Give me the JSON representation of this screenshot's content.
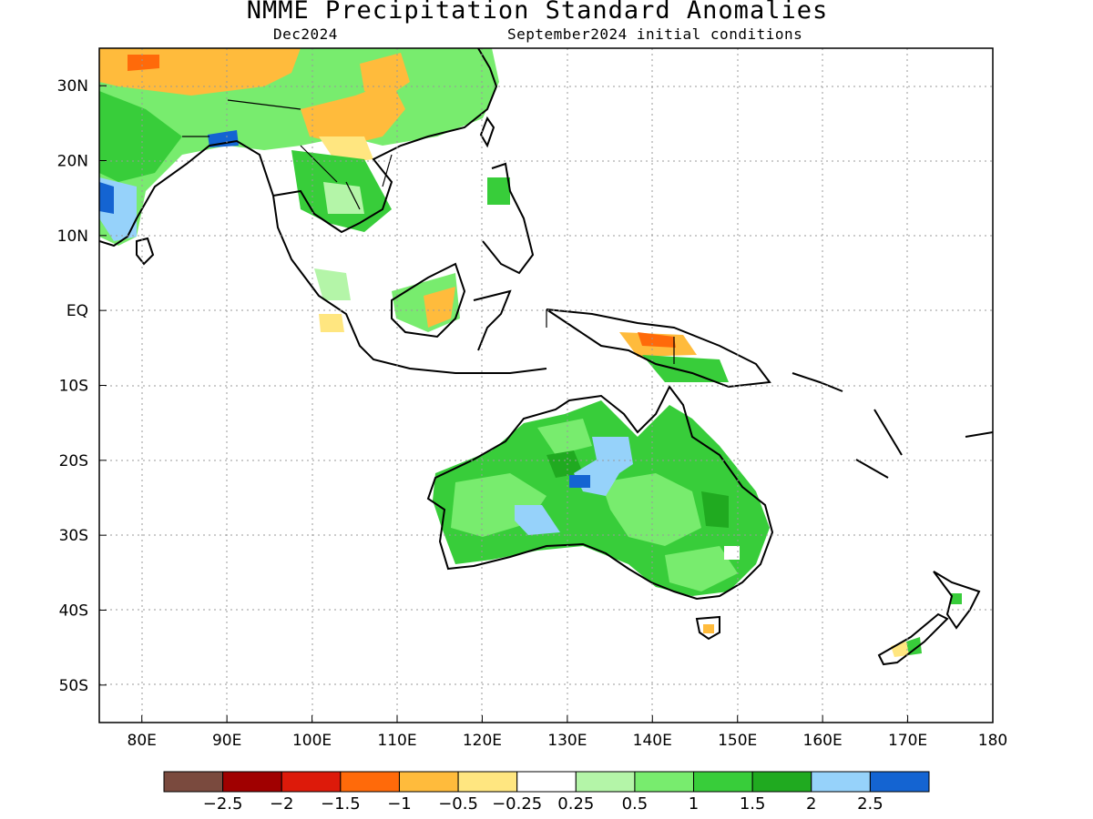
{
  "title": "NMME Precipitation Standard Anomalies",
  "subtitle_left": "Dec2024",
  "subtitle_right": "September2024 initial conditions",
  "map": {
    "lon_range": [
      75,
      180
    ],
    "lat_range": [
      -55,
      35
    ],
    "x_ticks": [
      "80E",
      "90E",
      "100E",
      "110E",
      "120E",
      "130E",
      "140E",
      "150E",
      "160E",
      "170E",
      "180"
    ],
    "x_tick_values": [
      80,
      90,
      100,
      110,
      120,
      130,
      140,
      150,
      160,
      170,
      180
    ],
    "y_ticks": [
      "30N",
      "20N",
      "10N",
      "EQ",
      "10S",
      "20S",
      "30S",
      "40S",
      "50S"
    ],
    "y_tick_values": [
      30,
      20,
      10,
      0,
      -10,
      -20,
      -30,
      -40,
      -50
    ],
    "grid": "dotted"
  },
  "colorbar": {
    "colors": [
      "#7a4a3e",
      "#a00000",
      "#dd1a0a",
      "#ff6a0a",
      "#ffbb3c",
      "#ffe680",
      "#ffffff",
      "#b4f5a8",
      "#78ec6e",
      "#38cd3a",
      "#20aa20",
      "#96d2fa",
      "#1464d2"
    ],
    "labels": [
      "−2.5",
      "−2",
      "−1.5",
      "−1",
      "−0.5",
      "−0.25",
      "0.25",
      "0.5",
      "1",
      "1.5",
      "2",
      "2.5"
    ]
  },
  "palette": {
    "green_light": "#b4f5a8",
    "green": "#78ec6e",
    "green_mid": "#38cd3a",
    "green_dark": "#20aa20",
    "blue_light": "#96d2fa",
    "blue_dark": "#1464d2",
    "yellow": "#ffe680",
    "orange_light": "#ffbb3c",
    "orange": "#ff6a0a"
  }
}
